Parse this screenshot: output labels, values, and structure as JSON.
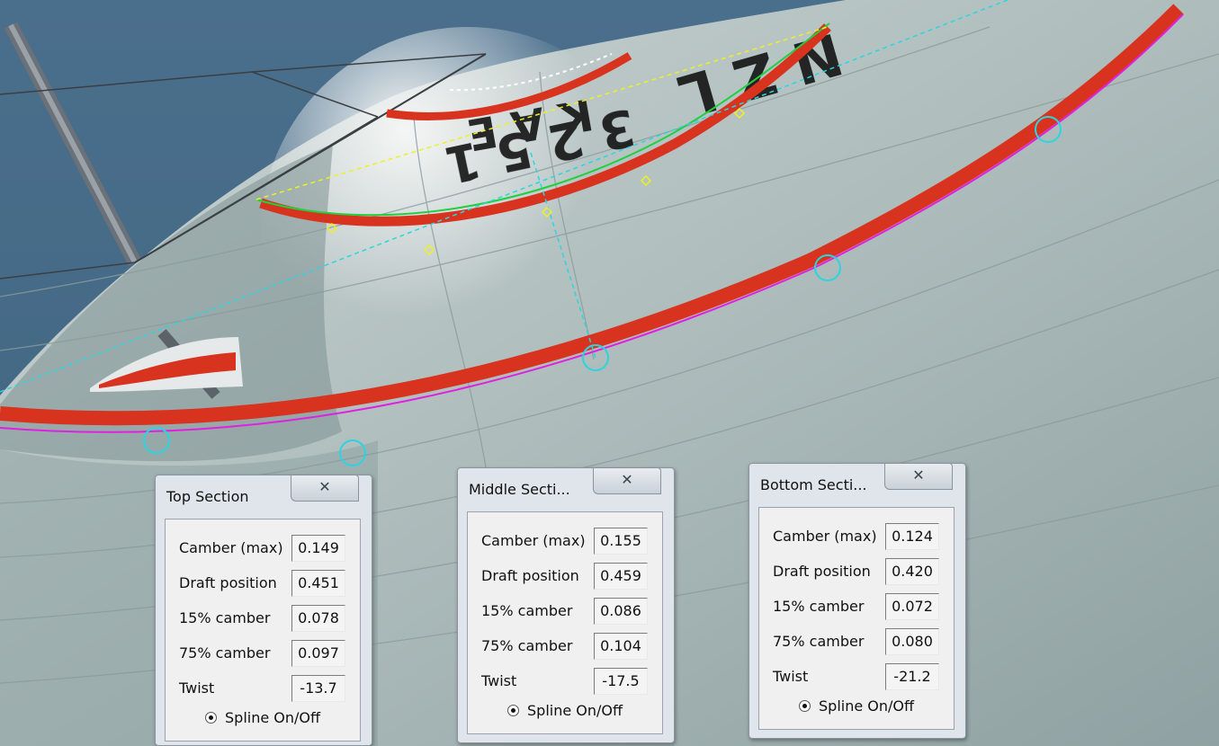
{
  "panels": {
    "top": {
      "title": "Top Section",
      "close_icon": "✕",
      "rows": [
        {
          "label": "Camber (max)",
          "value": "0.149"
        },
        {
          "label": "Draft position",
          "value": "0.451"
        },
        {
          "label": "15% camber",
          "value": "0.078"
        },
        {
          "label": "75% camber",
          "value": "0.097"
        },
        {
          "label": "Twist",
          "value": "-13.7"
        }
      ],
      "spline_label": "Spline On/Off"
    },
    "middle": {
      "title": "Middle Secti...",
      "close_icon": "✕",
      "rows": [
        {
          "label": "Camber (max)",
          "value": "0.155"
        },
        {
          "label": "Draft position",
          "value": "0.459"
        },
        {
          "label": "15% camber",
          "value": "0.086"
        },
        {
          "label": "75% camber",
          "value": "0.104"
        },
        {
          "label": "Twist",
          "value": "-17.5"
        }
      ],
      "spline_label": "Spline On/Off"
    },
    "bottom": {
      "title": "Bottom Secti...",
      "close_icon": "✕",
      "rows": [
        {
          "label": "Camber (max)",
          "value": "0.124"
        },
        {
          "label": "Draft position",
          "value": "0.420"
        },
        {
          "label": "15% camber",
          "value": "0.072"
        },
        {
          "label": "75% camber",
          "value": "0.080"
        },
        {
          "label": "Twist",
          "value": "-21.2"
        }
      ],
      "spline_label": "Spline On/Off"
    }
  },
  "colors": {
    "stripe": "#d8331f",
    "spline": "#e020e0",
    "chord": "#29d6e0",
    "draft": "#f0f020",
    "fit": "#20d040"
  }
}
